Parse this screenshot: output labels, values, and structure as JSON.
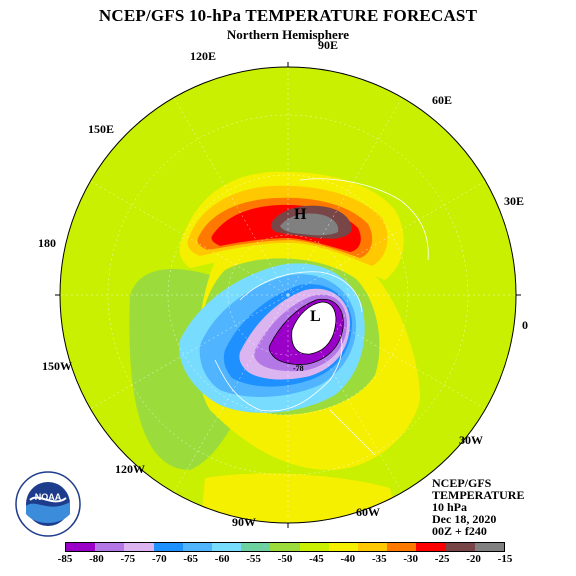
{
  "title": "NCEP/GFS 10-hPa TEMPERATURE FORECAST",
  "subtitle": "Northern Hemisphere",
  "longitude_labels": {
    "e90": "90E",
    "e120": "120E",
    "e60": "60E",
    "e150": "150E",
    "e30": "30E",
    "l180": "180",
    "l0": "0",
    "w150": "150W",
    "w30": "30W",
    "w120": "120W",
    "w90": "90W",
    "w60": "60W"
  },
  "map_marks": {
    "high": "H",
    "low": "L",
    "contour_value": "-78"
  },
  "info": {
    "line1": "NCEP/GFS",
    "line2": "TEMPERATURE",
    "line3": "10 hPa",
    "line4": "Dec 18, 2020",
    "line5": "00Z + f240"
  },
  "logo_text": "NOAA",
  "colorbar": {
    "labels": [
      "-85",
      "-80",
      "-75",
      "-70",
      "-65",
      "-60",
      "-55",
      "-50",
      "-45",
      "-40",
      "-35",
      "-30",
      "-25",
      "-20",
      "-15"
    ],
    "colors": [
      "#9a00c8",
      "#b478e6",
      "#dcb4f0",
      "#1e90ff",
      "#50b4ff",
      "#78dcff",
      "#6ed2a0",
      "#9bdc3c",
      "#c8f000",
      "#f5f000",
      "#ffc800",
      "#ff7800",
      "#ff0000",
      "#784646",
      "#808080"
    ],
    "unit": ""
  },
  "colors": {
    "base_field": "#c8f000",
    "ocean_border": "#ffffff"
  }
}
